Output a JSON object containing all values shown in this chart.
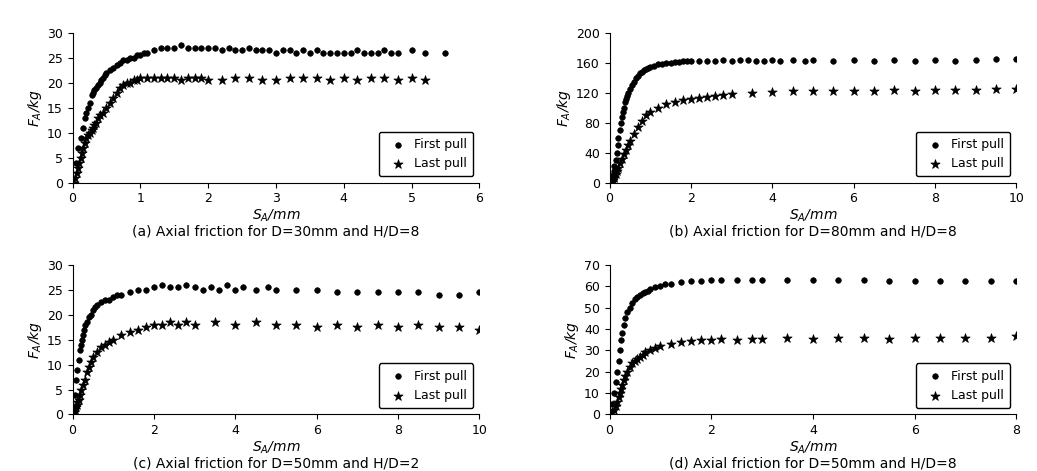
{
  "panels": [
    {
      "title": "(a) Axial friction for D=30mm and H/D=8",
      "xlabel": "$S_A$/mm",
      "ylabel": "$F_A$/kg",
      "xlim": [
        0,
        6
      ],
      "ylim": [
        0,
        30
      ],
      "xticks": [
        0,
        1,
        2,
        3,
        4,
        5,
        6
      ],
      "yticks": [
        0,
        5,
        10,
        15,
        20,
        25,
        30
      ],
      "first_pull": {
        "x": [
          0.05,
          0.08,
          0.12,
          0.15,
          0.18,
          0.2,
          0.22,
          0.25,
          0.28,
          0.3,
          0.32,
          0.35,
          0.38,
          0.4,
          0.42,
          0.45,
          0.48,
          0.5,
          0.55,
          0.6,
          0.65,
          0.7,
          0.75,
          0.8,
          0.85,
          0.9,
          0.95,
          1.0,
          1.05,
          1.1,
          1.2,
          1.3,
          1.4,
          1.5,
          1.6,
          1.7,
          1.8,
          1.9,
          2.0,
          2.1,
          2.2,
          2.3,
          2.4,
          2.5,
          2.6,
          2.7,
          2.8,
          2.9,
          3.0,
          3.1,
          3.2,
          3.3,
          3.4,
          3.5,
          3.6,
          3.7,
          3.8,
          3.9,
          4.0,
          4.1,
          4.2,
          4.3,
          4.4,
          4.5,
          4.6,
          4.7,
          4.8,
          5.0,
          5.2,
          5.5
        ],
        "y": [
          4,
          7,
          9,
          11,
          13,
          14,
          15,
          16,
          17.5,
          18,
          18.5,
          19,
          19.5,
          20,
          20.5,
          21,
          21.5,
          22,
          22.5,
          23,
          23.5,
          24,
          24.5,
          24.5,
          25,
          25,
          25.5,
          25.5,
          26,
          26,
          26.5,
          27,
          27,
          27,
          27.5,
          27,
          27,
          27,
          27,
          27,
          26.5,
          27,
          26.5,
          26.5,
          27,
          26.5,
          26.5,
          26.5,
          26,
          26.5,
          26.5,
          26,
          26.5,
          26,
          26.5,
          26,
          26,
          26,
          26,
          26,
          26.5,
          26,
          26,
          26,
          26.5,
          26,
          26,
          26.5,
          26,
          26
        ]
      },
      "last_pull": {
        "x": [
          0.02,
          0.04,
          0.06,
          0.08,
          0.1,
          0.12,
          0.14,
          0.16,
          0.18,
          0.2,
          0.22,
          0.25,
          0.28,
          0.3,
          0.32,
          0.35,
          0.38,
          0.4,
          0.45,
          0.5,
          0.55,
          0.6,
          0.65,
          0.7,
          0.75,
          0.8,
          0.85,
          0.9,
          0.95,
          1.0,
          1.1,
          1.2,
          1.3,
          1.4,
          1.5,
          1.6,
          1.7,
          1.8,
          1.9,
          2.0,
          2.2,
          2.4,
          2.6,
          2.8,
          3.0,
          3.2,
          3.4,
          3.6,
          3.8,
          4.0,
          4.2,
          4.4,
          4.6,
          4.8,
          5.0,
          5.2
        ],
        "y": [
          0,
          1,
          2,
          3,
          4,
          5,
          6,
          7,
          8,
          9,
          9.5,
          10,
          10.5,
          11,
          11.5,
          12,
          13,
          13.5,
          14,
          15,
          16,
          17,
          18,
          19,
          19.5,
          20,
          20,
          20.5,
          20.5,
          21,
          21,
          21,
          21,
          21,
          21,
          20.5,
          21,
          21,
          21,
          20.5,
          20.5,
          21,
          21,
          20.5,
          20.5,
          21,
          21,
          21,
          20.5,
          21,
          20.5,
          21,
          21,
          20.5,
          21,
          20.5
        ]
      }
    },
    {
      "title": "(b) Axial friction for D=80mm and H/D=8",
      "xlabel": "$S_A$/mm",
      "ylabel": "$F_A$/kg",
      "xlim": [
        0,
        10
      ],
      "ylim": [
        0,
        200
      ],
      "xticks": [
        0,
        2,
        4,
        6,
        8,
        10
      ],
      "yticks": [
        0,
        40,
        80,
        120,
        160,
        200
      ],
      "first_pull": {
        "x": [
          0.05,
          0.08,
          0.1,
          0.12,
          0.15,
          0.18,
          0.2,
          0.22,
          0.25,
          0.28,
          0.3,
          0.32,
          0.35,
          0.38,
          0.4,
          0.42,
          0.45,
          0.5,
          0.55,
          0.6,
          0.65,
          0.7,
          0.75,
          0.8,
          0.85,
          0.9,
          0.95,
          1.0,
          1.1,
          1.2,
          1.3,
          1.4,
          1.5,
          1.6,
          1.7,
          1.8,
          1.9,
          2.0,
          2.2,
          2.4,
          2.6,
          2.8,
          3.0,
          3.2,
          3.4,
          3.6,
          3.8,
          4.0,
          4.2,
          4.5,
          4.8,
          5.0,
          5.5,
          6.0,
          6.5,
          7.0,
          7.5,
          8.0,
          8.5,
          9.0,
          9.5,
          10.0
        ],
        "y": [
          5,
          10,
          15,
          22,
          30,
          40,
          50,
          60,
          70,
          80,
          88,
          95,
          100,
          108,
          112,
          116,
          120,
          125,
          130,
          135,
          140,
          143,
          146,
          148,
          150,
          152,
          153,
          155,
          156,
          158,
          158,
          160,
          160,
          161,
          161,
          162,
          162,
          162,
          163,
          163,
          163,
          164,
          163,
          164,
          164,
          163,
          163,
          164,
          163,
          164,
          163,
          164,
          163,
          164,
          163,
          164,
          163,
          164,
          163,
          164,
          165,
          165
        ]
      },
      "last_pull": {
        "x": [
          0.02,
          0.04,
          0.06,
          0.08,
          0.1,
          0.12,
          0.15,
          0.18,
          0.2,
          0.25,
          0.3,
          0.35,
          0.4,
          0.45,
          0.5,
          0.6,
          0.7,
          0.8,
          0.9,
          1.0,
          1.2,
          1.4,
          1.6,
          1.8,
          2.0,
          2.2,
          2.4,
          2.6,
          2.8,
          3.0,
          3.5,
          4.0,
          4.5,
          5.0,
          5.5,
          6.0,
          6.5,
          7.0,
          7.5,
          8.0,
          8.5,
          9.0,
          9.5,
          10.0
        ],
        "y": [
          0,
          1,
          2,
          4,
          6,
          8,
          12,
          16,
          20,
          26,
          32,
          38,
          44,
          50,
          56,
          65,
          74,
          82,
          90,
          95,
          100,
          105,
          108,
          110,
          112,
          113,
          115,
          116,
          117,
          118,
          120,
          121,
          122,
          122,
          123,
          123,
          123,
          124,
          123,
          124,
          124,
          124,
          125,
          125
        ]
      }
    },
    {
      "title": "(c) Axial friction for D=50mm and H/D=2",
      "xlabel": "$S_A$/mm",
      "ylabel": "$F_A$/kg",
      "xlim": [
        0,
        10
      ],
      "ylim": [
        0,
        30
      ],
      "xticks": [
        0,
        2,
        4,
        6,
        8,
        10
      ],
      "yticks": [
        0,
        5,
        10,
        15,
        20,
        25,
        30
      ],
      "first_pull": {
        "x": [
          0.05,
          0.08,
          0.12,
          0.15,
          0.18,
          0.2,
          0.22,
          0.25,
          0.28,
          0.3,
          0.35,
          0.4,
          0.45,
          0.5,
          0.55,
          0.6,
          0.7,
          0.8,
          0.9,
          1.0,
          1.1,
          1.2,
          1.4,
          1.6,
          1.8,
          2.0,
          2.2,
          2.4,
          2.6,
          2.8,
          3.0,
          3.2,
          3.4,
          3.6,
          3.8,
          4.0,
          4.2,
          4.5,
          4.8,
          5.0,
          5.5,
          6.0,
          6.5,
          7.0,
          7.5,
          8.0,
          8.5,
          9.0,
          9.5,
          10.0
        ],
        "y": [
          4,
          7,
          9,
          11,
          13,
          14,
          15,
          16,
          17,
          18,
          18.5,
          19.5,
          20,
          21,
          21.5,
          22,
          22.5,
          23,
          23,
          23.5,
          24,
          24,
          24.5,
          25,
          25,
          25.5,
          26,
          25.5,
          25.5,
          26,
          25.5,
          25,
          25.5,
          25,
          26,
          25,
          25.5,
          25,
          25.5,
          25,
          25,
          25,
          24.5,
          24.5,
          24.5,
          24.5,
          24.5,
          24,
          24,
          24.5
        ]
      },
      "last_pull": {
        "x": [
          0.02,
          0.04,
          0.06,
          0.08,
          0.1,
          0.12,
          0.15,
          0.18,
          0.2,
          0.25,
          0.3,
          0.35,
          0.4,
          0.45,
          0.5,
          0.6,
          0.7,
          0.8,
          0.9,
          1.0,
          1.2,
          1.4,
          1.6,
          1.8,
          2.0,
          2.2,
          2.4,
          2.6,
          2.8,
          3.0,
          3.5,
          4.0,
          4.5,
          5.0,
          5.5,
          6.0,
          6.5,
          7.0,
          7.5,
          8.0,
          8.5,
          9.0,
          9.5,
          10.0
        ],
        "y": [
          0,
          0.5,
          1,
          1.5,
          2,
          2.5,
          3,
          4,
          5,
          6,
          7,
          8.5,
          9.5,
          10.5,
          11.5,
          12.5,
          13.5,
          14,
          14.5,
          15,
          16,
          16.5,
          17,
          17.5,
          18,
          18,
          18.5,
          18,
          18.5,
          18,
          18.5,
          18,
          18.5,
          18,
          18,
          17.5,
          18,
          17.5,
          18,
          17.5,
          18,
          17.5,
          17.5,
          17
        ]
      }
    },
    {
      "title": "(d) Axial friction for D=50mm and H/D=8",
      "xlabel": "$S_A$/mm",
      "ylabel": "$F_A$/kg",
      "xlim": [
        0,
        8
      ],
      "ylim": [
        0,
        70
      ],
      "xticks": [
        0,
        2,
        4,
        6,
        8
      ],
      "yticks": [
        0,
        10,
        20,
        30,
        40,
        50,
        60,
        70
      ],
      "first_pull": {
        "x": [
          0.05,
          0.08,
          0.12,
          0.15,
          0.18,
          0.2,
          0.22,
          0.25,
          0.28,
          0.3,
          0.35,
          0.4,
          0.45,
          0.5,
          0.55,
          0.6,
          0.65,
          0.7,
          0.75,
          0.8,
          0.9,
          1.0,
          1.1,
          1.2,
          1.4,
          1.6,
          1.8,
          2.0,
          2.2,
          2.5,
          2.8,
          3.0,
          3.5,
          4.0,
          4.5,
          5.0,
          5.5,
          6.0,
          6.5,
          7.0,
          7.5,
          8.0
        ],
        "y": [
          5,
          10,
          15,
          20,
          25,
          30,
          35,
          38,
          42,
          45,
          48,
          50,
          52,
          54,
          55,
          56,
          57,
          57.5,
          58,
          58.5,
          59.5,
          60,
          61,
          61,
          62,
          62.5,
          62.5,
          63,
          63,
          63,
          63,
          63,
          63,
          63,
          63,
          63,
          62.5,
          62.5,
          62.5,
          62.5,
          62.5,
          62.5
        ]
      },
      "last_pull": {
        "x": [
          0.05,
          0.08,
          0.12,
          0.15,
          0.18,
          0.2,
          0.22,
          0.25,
          0.28,
          0.3,
          0.35,
          0.4,
          0.45,
          0.5,
          0.55,
          0.6,
          0.65,
          0.7,
          0.8,
          0.9,
          1.0,
          1.2,
          1.4,
          1.6,
          1.8,
          2.0,
          2.2,
          2.5,
          2.8,
          3.0,
          3.5,
          4.0,
          4.5,
          5.0,
          5.5,
          6.0,
          6.5,
          7.0,
          7.5,
          8.0
        ],
        "y": [
          1,
          2,
          4,
          6,
          8,
          10,
          12,
          14,
          16,
          18,
          20,
          22,
          24,
          25,
          26,
          27,
          28,
          29,
          30,
          31,
          32,
          33,
          34,
          34.5,
          35,
          35,
          35.5,
          35,
          35.5,
          35.5,
          36,
          35.5,
          36,
          36,
          35.5,
          36,
          36,
          36,
          36,
          36.5
        ]
      }
    }
  ],
  "first_pull_color": "#000000",
  "last_pull_color": "#000000",
  "first_pull_marker": "o",
  "last_pull_marker": "*",
  "first_pull_markersize": 4,
  "last_pull_markersize": 7,
  "legend_first": "First pull",
  "legend_last": "Last pull",
  "background_color": "#ffffff",
  "caption_fontsize": 10,
  "axis_label_fontsize": 10,
  "tick_fontsize": 9,
  "legend_fontsize": 9
}
